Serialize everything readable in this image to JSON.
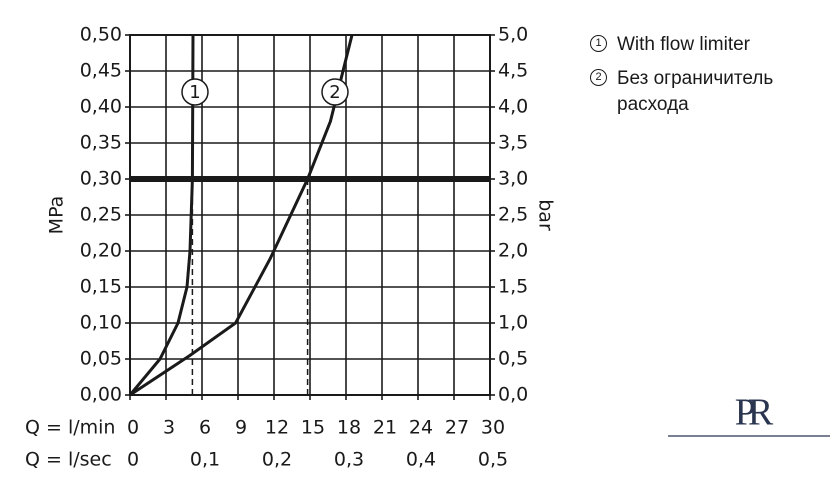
{
  "chart_data": {
    "type": "line",
    "xlabel": "Q = l/min",
    "x2label": "Q = l/sec",
    "ylabel": "MPa",
    "y2label": "bar",
    "xlim": [
      0,
      30
    ],
    "xticks": [
      0,
      3,
      6,
      9,
      12,
      15,
      18,
      21,
      24,
      27,
      30
    ],
    "x2lim": [
      0,
      0.5
    ],
    "x2ticks": [
      0,
      {
        "value": 0.1,
        "label": "0,1"
      },
      {
        "value": 0.2,
        "label": "0,2"
      },
      {
        "value": 0.3,
        "label": "0,3"
      },
      {
        "value": 0.4,
        "label": "0,4"
      },
      {
        "value": 0.5,
        "label": "0,5"
      }
    ],
    "ylim": [
      0,
      0.5
    ],
    "yticks": [
      {
        "value": 0,
        "label": "0,00"
      },
      {
        "value": 0.05,
        "label": "0,05"
      },
      {
        "value": 0.1,
        "label": "0,10"
      },
      {
        "value": 0.15,
        "label": "0,15"
      },
      {
        "value": 0.2,
        "label": "0,20"
      },
      {
        "value": 0.25,
        "label": "0,25"
      },
      {
        "value": 0.3,
        "label": "0,30"
      },
      {
        "value": 0.35,
        "label": "0,35"
      },
      {
        "value": 0.4,
        "label": "0,40"
      },
      {
        "value": 0.45,
        "label": "0,45"
      },
      {
        "value": 0.5,
        "label": "0,50"
      }
    ],
    "y2lim": [
      0,
      5
    ],
    "y2ticks": [
      {
        "value": 0,
        "label": "0,0"
      },
      {
        "value": 0.5,
        "label": "0,5"
      },
      {
        "value": 1,
        "label": "1,0"
      },
      {
        "value": 1.5,
        "label": "1,5"
      },
      {
        "value": 2,
        "label": "2,0"
      },
      {
        "value": 2.5,
        "label": "2,5"
      },
      {
        "value": 3,
        "label": "3,0"
      },
      {
        "value": 3.5,
        "label": "3,5"
      },
      {
        "value": 4,
        "label": "4,0"
      },
      {
        "value": 4.5,
        "label": "4,5"
      },
      {
        "value": 5,
        "label": "5,0"
      }
    ],
    "grid": true,
    "threshold": 0.3,
    "drop_lines": [
      {
        "x": 5.2,
        "y": 0.3
      },
      {
        "x": 14.8,
        "y": 0.3
      }
    ],
    "series": [
      {
        "name": "With flow limiter",
        "label": "1",
        "color": "#1a1a1a",
        "x": [
          0,
          2.5,
          4.0,
          4.75,
          5.0,
          5.2,
          5.25
        ],
        "values": [
          0,
          0.05,
          0.1,
          0.15,
          0.2,
          0.3,
          0.5
        ]
      },
      {
        "name": "Без ограничитель расхода",
        "label": "2",
        "color": "#1a1a1a",
        "x": [
          0,
          5,
          8.8,
          11.7,
          14.8,
          16.7,
          18.5
        ],
        "values": [
          0,
          0.055,
          0.1,
          0.19,
          0.3,
          0.38,
          0.5
        ]
      }
    ],
    "logo": "PR"
  }
}
